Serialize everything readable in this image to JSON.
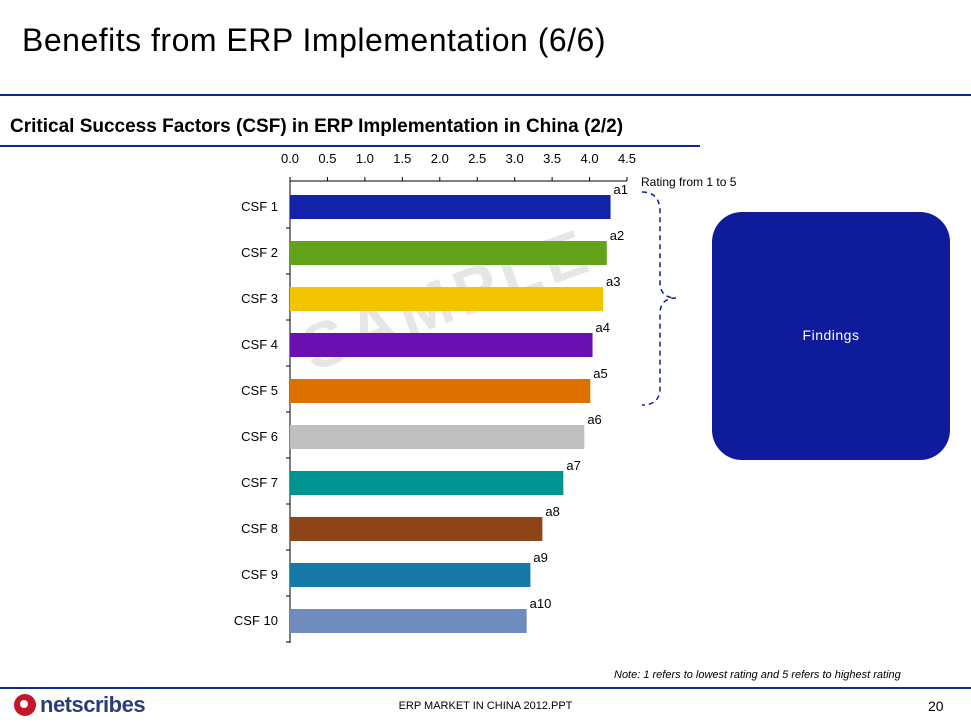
{
  "slide": {
    "title": "Benefits from ERP Implementation (6/6)",
    "subtitle": "Critical Success Factors (CSF) in ERP Implementation in China (2/2)",
    "findings_label": "Findings",
    "note": "Note: 1 refers to  lowest rating and 5 refers to highest rating",
    "watermark": "SAMPLE",
    "logo_text": "netscribes",
    "footer_center": "ERP MARKET IN CHINA 2012.PPT",
    "page_number": "20"
  },
  "colors": {
    "accent": "#0b2d8a",
    "findings_box": "#0e1c9c"
  },
  "chart_data": {
    "type": "bar",
    "orientation": "horizontal",
    "title": "",
    "xlabel": "Rating from 1 to 5",
    "xlim": [
      0,
      4.5
    ],
    "xticks": [
      "0.0",
      "0.5",
      "1.0",
      "1.5",
      "2.0",
      "2.5",
      "3.0",
      "3.5",
      "4.0",
      "4.5"
    ],
    "xaxis_position": "top",
    "categories": [
      "CSF 1",
      "CSF 2",
      "CSF 3",
      "CSF 4",
      "CSF 5",
      "CSF 6",
      "CSF 7",
      "CSF 8",
      "CSF 9",
      "CSF 10"
    ],
    "values": [
      4.28,
      4.23,
      4.18,
      4.04,
      4.01,
      3.93,
      3.65,
      3.37,
      3.21,
      3.16
    ],
    "data_labels": [
      "a1",
      "a2",
      "a3",
      "a4",
      "a5",
      "a6",
      "a7",
      "a8",
      "a9",
      "a10"
    ],
    "bar_colors": [
      "#1322a8",
      "#63a31a",
      "#f2c500",
      "#6a0fb0",
      "#de7000",
      "#bfbfbf",
      "#00938f",
      "#8c4418",
      "#1478a8",
      "#6e8cbd"
    ]
  }
}
